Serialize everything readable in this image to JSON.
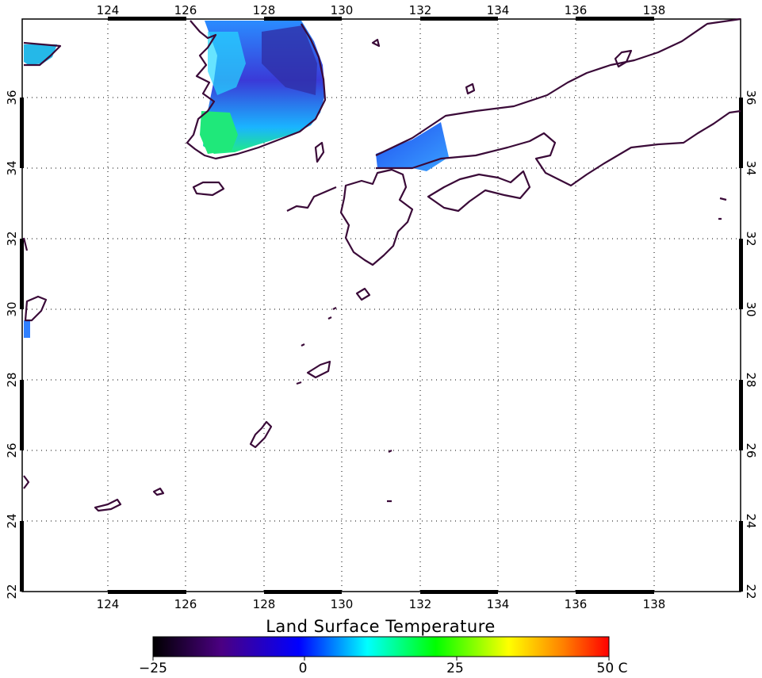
{
  "map": {
    "lon_labels": [
      "124",
      "126",
      "128",
      "130",
      "132",
      "134",
      "136",
      "138"
    ],
    "lat_labels": [
      "22",
      "24",
      "26",
      "28",
      "30",
      "32",
      "34",
      "36"
    ],
    "lon_range": [
      122,
      140
    ],
    "lat_range": [
      22,
      38
    ],
    "grid": "dotted"
  },
  "colorbar": {
    "title": "Land Surface Temperature",
    "labels": [
      "−25",
      "0",
      "25",
      "50 C"
    ],
    "values": [
      -25,
      0,
      25,
      50
    ],
    "colors": [
      "#000000",
      "#5a007a",
      "#0000ff",
      "#00ffff",
      "#00ff00",
      "#ffff00",
      "#ff0000"
    ]
  },
  "colors": {
    "coastline": "#3a0a38",
    "grid": "#000000"
  }
}
